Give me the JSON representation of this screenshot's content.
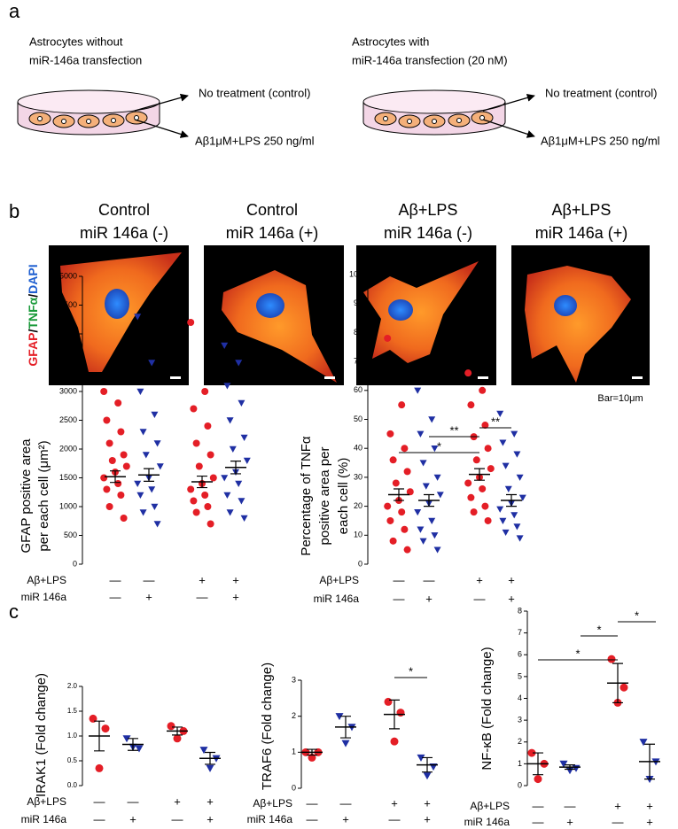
{
  "panel_a": {
    "label": "a",
    "left": {
      "title_lines": [
        "Astrocytes without",
        "miR-146a transfection"
      ],
      "outcomes": [
        "No treatment (control)",
        "Aβ1μM+LPS 250 ng/ml"
      ]
    },
    "right": {
      "title_lines": [
        "Astrocytes with",
        "miR-146a transfection (20 nM)"
      ],
      "outcomes": [
        "No treatment (control)",
        "Aβ1μM+LPS 250 ng/ml"
      ]
    }
  },
  "panel_b_images": {
    "label": "b",
    "stain_label": [
      {
        "text": "GFAP",
        "color": "#e41e26"
      },
      {
        "text": "/",
        "color": "#000000"
      },
      {
        "text": "TNFα",
        "color": "#1a9a3a"
      },
      {
        "text": "/",
        "color": "#000000"
      },
      {
        "text": "DAPI",
        "color": "#1f5fd0"
      }
    ],
    "images": [
      {
        "lines": [
          "Control",
          "miR 146a (-)"
        ]
      },
      {
        "lines": [
          "Control",
          "miR 146a (+)"
        ]
      },
      {
        "lines": [
          "Aβ+LPS",
          "miR 146a (-)"
        ]
      },
      {
        "lines": [
          "Aβ+LPS",
          "miR 146a (+)"
        ]
      }
    ],
    "scale_note": "Bar=10μm"
  },
  "panel_c_label": "c",
  "chart_data": [
    {
      "type": "dot",
      "ylabel_lines": [
        "GFAP positive area",
        "per each cell (μm²)"
      ],
      "ylim": [
        0,
        5000
      ],
      "yticks": [
        0,
        500,
        1000,
        1500,
        2000,
        2500,
        3000,
        3500,
        4000,
        4500,
        5000
      ],
      "conditions": [
        {
          "name": "Aβ+LPS",
          "signs": [
            "—",
            "—",
            "+",
            "+"
          ]
        },
        {
          "name": "miR 146a",
          "signs": [
            "—",
            "+",
            "—",
            "+"
          ]
        }
      ],
      "series": [
        {
          "color": "#e41e26",
          "marker": "circle",
          "values": [
            3000,
            2800,
            2500,
            2300,
            2100,
            1900,
            1800,
            1700,
            1600,
            1500,
            1400,
            1300,
            1200,
            1000,
            800
          ],
          "mean": 1520,
          "sem": 100
        },
        {
          "color": "#1f2fa3",
          "marker": "triangle",
          "values": [
            4300,
            3500,
            3000,
            2600,
            2300,
            2100,
            1900,
            1700,
            1500,
            1400,
            1300,
            1200,
            1000,
            900,
            700
          ],
          "mean": 1550,
          "sem": 110
        },
        {
          "color": "#e41e26",
          "marker": "circle",
          "values": [
            4200,
            3000,
            2700,
            2400,
            2100,
            1900,
            1700,
            1500,
            1400,
            1300,
            1200,
            1100,
            1000,
            900,
            700
          ],
          "mean": 1430,
          "sem": 100
        },
        {
          "color": "#1f2fa3",
          "marker": "triangle",
          "values": [
            3800,
            3500,
            3100,
            2800,
            2500,
            2200,
            2000,
            1800,
            1600,
            1500,
            1400,
            1200,
            1100,
            900,
            800
          ],
          "mean": 1680,
          "sem": 110
        }
      ],
      "brackets": []
    },
    {
      "type": "dot",
      "ylabel_lines": [
        "Percentage of TNFα",
        "positive area per",
        "each cell (%)"
      ],
      "ylim": [
        0,
        100
      ],
      "yticks": [
        0,
        10,
        20,
        30,
        40,
        50,
        60,
        70,
        80,
        90,
        100
      ],
      "conditions": [
        {
          "name": "Aβ+LPS",
          "signs": [
            "—",
            "—",
            "+",
            "+"
          ]
        },
        {
          "name": "miR 146a",
          "signs": [
            "—",
            "+",
            "—",
            "+"
          ]
        }
      ],
      "series": [
        {
          "color": "#e41e26",
          "marker": "circle",
          "values": [
            78,
            55,
            45,
            40,
            36,
            32,
            28,
            25,
            22,
            20,
            18,
            15,
            12,
            8,
            5
          ],
          "mean": 24,
          "sem": 2
        },
        {
          "color": "#1f2fa3",
          "marker": "triangle",
          "values": [
            60,
            50,
            45,
            40,
            35,
            30,
            27,
            24,
            21,
            18,
            15,
            12,
            10,
            8,
            5
          ],
          "mean": 22,
          "sem": 2
        },
        {
          "color": "#e41e26",
          "marker": "circle",
          "values": [
            66,
            60,
            55,
            48,
            44,
            40,
            36,
            33,
            30,
            28,
            26,
            23,
            20,
            18,
            15
          ],
          "mean": 31,
          "sem": 2
        },
        {
          "color": "#1f2fa3",
          "marker": "triangle",
          "values": [
            52,
            45,
            42,
            38,
            34,
            30,
            26,
            23,
            21,
            19,
            17,
            15,
            13,
            11,
            9
          ],
          "mean": 22,
          "sem": 2
        }
      ],
      "brackets": [
        {
          "from": 0,
          "to": 2,
          "label": "*"
        },
        {
          "from": 1,
          "to": 2,
          "label": "**"
        },
        {
          "from": 2,
          "to": 3,
          "label": "**"
        }
      ]
    },
    {
      "type": "dot",
      "ylabel_lines": [
        "IRAK1 (Fold change)"
      ],
      "ylim": [
        0,
        2
      ],
      "yticks": [
        {
          "value": 0,
          "label": "0.0"
        },
        {
          "value": 0.5,
          "label": "0.5"
        },
        {
          "value": 1,
          "label": "1.0"
        },
        {
          "value": 1.5,
          "label": "1.5"
        },
        {
          "value": 2,
          "label": "2.0"
        }
      ],
      "conditions": [
        {
          "name": "Aβ+LPS",
          "signs": [
            "—",
            "—",
            "+",
            "+"
          ]
        },
        {
          "name": "miR 146a",
          "signs": [
            "—",
            "+",
            "—",
            "+"
          ]
        }
      ],
      "series": [
        {
          "color": "#e41e26",
          "marker": "circle",
          "values": [
            1.35,
            1.15,
            0.35
          ],
          "mean": 1.0,
          "sem": 0.3
        },
        {
          "color": "#1f2fa3",
          "marker": "triangle",
          "values": [
            0.95,
            0.75,
            0.78
          ],
          "mean": 0.83,
          "sem": 0.12
        },
        {
          "color": "#e41e26",
          "marker": "circle",
          "values": [
            1.2,
            1.1,
            0.95
          ],
          "mean": 1.1,
          "sem": 0.08
        },
        {
          "color": "#1f2fa3",
          "marker": "triangle",
          "values": [
            0.72,
            0.55,
            0.35
          ],
          "mean": 0.55,
          "sem": 0.12
        }
      ],
      "brackets": []
    },
    {
      "type": "dot",
      "ylabel_lines": [
        "TRAF6 (Fold change)"
      ],
      "ylim": [
        0,
        3
      ],
      "yticks": [
        0,
        1,
        2,
        3
      ],
      "conditions": [
        {
          "name": "Aβ+LPS",
          "signs": [
            "—",
            "—",
            "+",
            "+"
          ]
        },
        {
          "name": "miR 146a",
          "signs": [
            "—",
            "+",
            "—",
            "+"
          ]
        }
      ],
      "series": [
        {
          "color": "#e41e26",
          "marker": "circle",
          "values": [
            1.0,
            1.0,
            0.85
          ],
          "mean": 1.0,
          "sem": 0.08
        },
        {
          "color": "#1f2fa3",
          "marker": "triangle",
          "values": [
            2.0,
            1.7,
            1.25
          ],
          "mean": 1.7,
          "sem": 0.3
        },
        {
          "color": "#e41e26",
          "marker": "circle",
          "values": [
            2.4,
            2.1,
            1.3
          ],
          "mean": 2.05,
          "sem": 0.4
        },
        {
          "color": "#1f2fa3",
          "marker": "triangle",
          "values": [
            0.85,
            0.6,
            0.35
          ],
          "mean": 0.65,
          "sem": 0.2
        }
      ],
      "brackets": [
        {
          "from": 2,
          "to": 3,
          "label": "*"
        }
      ]
    },
    {
      "type": "dot",
      "ylabel_lines": [
        "NF-κB (Fold change)"
      ],
      "ylim": [
        0,
        8
      ],
      "yticks": [
        0,
        1,
        2,
        3,
        4,
        5,
        6,
        7,
        8
      ],
      "conditions": [
        {
          "name": "Aβ+LPS",
          "signs": [
            "—",
            "—",
            "+",
            "+"
          ]
        },
        {
          "name": "miR 146a",
          "signs": [
            "—",
            "+",
            "—",
            "+"
          ]
        }
      ],
      "series": [
        {
          "color": "#e41e26",
          "marker": "circle",
          "values": [
            1.5,
            1.0,
            0.3
          ],
          "mean": 1.0,
          "sem": 0.5
        },
        {
          "color": "#1f2fa3",
          "marker": "triangle",
          "values": [
            1.0,
            0.8,
            0.7
          ],
          "mean": 0.85,
          "sem": 0.1
        },
        {
          "color": "#e41e26",
          "marker": "circle",
          "values": [
            5.8,
            4.5,
            3.8
          ],
          "mean": 4.7,
          "sem": 0.9
        },
        {
          "color": "#1f2fa3",
          "marker": "triangle",
          "values": [
            2.0,
            1.1,
            0.3
          ],
          "mean": 1.1,
          "sem": 0.8
        }
      ],
      "brackets": [
        {
          "from": 0,
          "to": 2,
          "label": "*"
        },
        {
          "from": 1,
          "to": 2,
          "label": "*"
        },
        {
          "from": 2,
          "to": 3,
          "label": "*"
        }
      ]
    }
  ]
}
